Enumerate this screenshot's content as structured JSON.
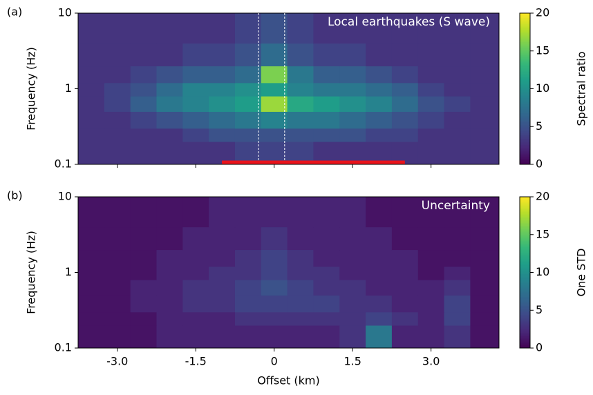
{
  "chart_data": [
    {
      "type": "heatmap",
      "panel_label": "(a)",
      "annotation": "Local earthquakes (S wave)",
      "ylabel": "Frequency (Hz)",
      "colormap": "viridis",
      "clim": [
        0,
        20
      ],
      "cbar_ticks": [
        0,
        5,
        10,
        15,
        20
      ],
      "cbar_label": "Spectral ratio",
      "xlim": [
        -3.75,
        4.3
      ],
      "ylim": [
        0.1,
        10
      ],
      "log_y": true,
      "xticks": [
        -3,
        -1.5,
        0,
        1.5,
        3
      ],
      "yticks": [
        0.1,
        1,
        10
      ],
      "x_edges": [
        -3.75,
        -3.25,
        -2.75,
        -2.25,
        -1.75,
        -1.25,
        -0.75,
        -0.25,
        0.25,
        0.75,
        1.25,
        1.75,
        2.25,
        2.75,
        3.25,
        3.75,
        4.3
      ],
      "y_edges": [
        0.1,
        0.2,
        0.3,
        0.5,
        0.8,
        1.2,
        2,
        4,
        10
      ],
      "z": [
        [
          3,
          3,
          3,
          3,
          3,
          3,
          4,
          4,
          4,
          3,
          3,
          3,
          3,
          3,
          3,
          3
        ],
        [
          3,
          3,
          3,
          3,
          4,
          5,
          5,
          5,
          5,
          5,
          5,
          4,
          4,
          3,
          3,
          3
        ],
        [
          3,
          3,
          4,
          5,
          6,
          7,
          8,
          9,
          8,
          8,
          7,
          6,
          5,
          4,
          3,
          3
        ],
        [
          3,
          4,
          6,
          8,
          9,
          10,
          11,
          17,
          12,
          11,
          10,
          9,
          7,
          5,
          4,
          3
        ],
        [
          3,
          4,
          5,
          7,
          9,
          9,
          10,
          11,
          9,
          8,
          8,
          7,
          6,
          4,
          3,
          3
        ],
        [
          3,
          3,
          4,
          5,
          6,
          6,
          7,
          16,
          8,
          6,
          6,
          5,
          4,
          3,
          3,
          3
        ],
        [
          3,
          3,
          3,
          3,
          4,
          4,
          5,
          7,
          5,
          4,
          4,
          3,
          3,
          3,
          3,
          3
        ],
        [
          3,
          3,
          3,
          3,
          3,
          3,
          4,
          5,
          4,
          3,
          3,
          3,
          3,
          3,
          3,
          3
        ]
      ],
      "highlight_range": [
        -1.0,
        2.5
      ],
      "highlight_color": "#e8141c",
      "dashed_lines": [
        -0.3,
        0.2
      ]
    },
    {
      "type": "heatmap",
      "panel_label": "(b)",
      "annotation": "Uncertainty",
      "ylabel": "Frequency (Hz)",
      "xlabel": "Offset (km)",
      "colormap": "viridis",
      "clim": [
        0,
        20
      ],
      "cbar_ticks": [
        0,
        5,
        10,
        15,
        20
      ],
      "cbar_label": "One STD",
      "xlim": [
        -3.75,
        4.3
      ],
      "ylim": [
        0.1,
        10
      ],
      "log_y": true,
      "xticks": [
        {
          "value": -3,
          "label": "-3.0"
        },
        -1.5,
        0,
        1.5,
        {
          "value": 3,
          "label": "3.0"
        }
      ],
      "yticks": [
        0.1,
        1,
        10
      ],
      "x_edges": [
        -3.75,
        -3.25,
        -2.75,
        -2.25,
        -1.75,
        -1.25,
        -0.75,
        -0.25,
        0.25,
        0.75,
        1.25,
        1.75,
        2.25,
        2.75,
        3.25,
        3.75,
        4.3
      ],
      "y_edges": [
        0.1,
        0.2,
        0.3,
        0.5,
        0.8,
        1.2,
        2,
        4,
        10
      ],
      "z": [
        [
          1,
          1,
          1,
          2,
          2,
          2,
          2,
          2,
          2,
          2,
          3,
          8,
          2,
          2,
          3,
          1
        ],
        [
          1,
          1,
          1,
          2,
          2,
          2,
          3,
          3,
          3,
          3,
          3,
          4,
          3,
          2,
          4,
          1
        ],
        [
          1,
          1,
          2,
          2,
          3,
          3,
          4,
          4,
          4,
          4,
          3,
          3,
          2,
          2,
          4,
          1
        ],
        [
          1,
          1,
          2,
          2,
          3,
          3,
          4,
          5,
          4,
          3,
          3,
          2,
          2,
          2,
          3,
          1
        ],
        [
          1,
          1,
          1,
          2,
          2,
          3,
          3,
          4,
          3,
          3,
          2,
          2,
          2,
          1,
          2,
          1
        ],
        [
          1,
          1,
          1,
          2,
          2,
          2,
          3,
          4,
          3,
          2,
          2,
          2,
          2,
          1,
          1,
          1
        ],
        [
          1,
          1,
          1,
          1,
          2,
          2,
          2,
          3,
          2,
          2,
          2,
          2,
          1,
          1,
          1,
          1
        ],
        [
          1,
          1,
          1,
          1,
          1,
          2,
          2,
          2,
          2,
          2,
          2,
          1,
          1,
          1,
          1,
          1
        ]
      ]
    }
  ]
}
